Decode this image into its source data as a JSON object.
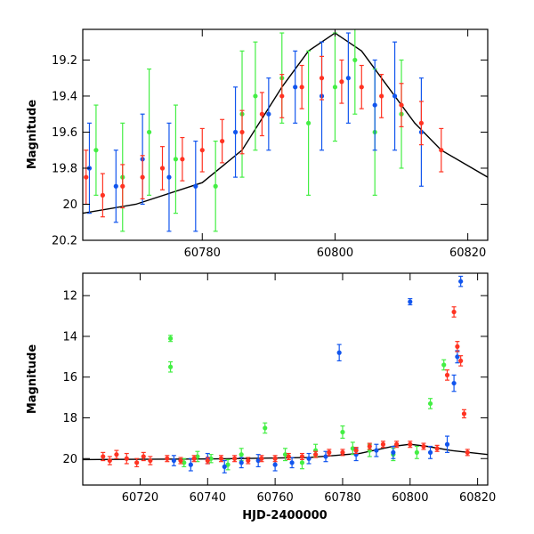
{
  "colors": {
    "green": "#44ee44",
    "blue": "#1155ee",
    "red": "#ff3322",
    "model": "#000000"
  },
  "chart_data": [
    {
      "type": "scatter",
      "panel": "top",
      "xlabel": "",
      "ylabel": "Magnitude",
      "xlim": [
        60762,
        60823
      ],
      "ylim": [
        20.2,
        19.03
      ],
      "y_inverted": true,
      "xticks": [
        60780,
        60800,
        60820
      ],
      "xtick_labels": [
        "60780",
        "60800",
        "60820"
      ],
      "yticks": [
        19.2,
        19.4,
        19.6,
        19.8,
        20,
        20.2
      ],
      "ytick_labels": [
        "19.2",
        "19.4",
        "19.6",
        "19.8",
        "20",
        "20.2"
      ],
      "series": [
        {
          "color": "green",
          "x": [
            60764,
            60768,
            60772,
            60776,
            60782,
            60786,
            60788,
            60792,
            60796,
            60800,
            60803,
            60806,
            60810
          ],
          "y": [
            19.7,
            19.85,
            19.6,
            19.75,
            19.9,
            19.5,
            19.4,
            19.3,
            19.55,
            19.35,
            19.2,
            19.6,
            19.5
          ],
          "err": [
            0.25,
            0.3,
            0.35,
            0.3,
            0.25,
            0.35,
            0.3,
            0.25,
            0.4,
            0.3,
            0.3,
            0.35,
            0.3
          ]
        },
        {
          "color": "blue",
          "x": [
            60763,
            60767,
            60771,
            60775,
            60779,
            60785,
            60790,
            60794,
            60798,
            60802,
            60806,
            60809,
            60813
          ],
          "y": [
            19.8,
            19.9,
            19.75,
            19.85,
            19.9,
            19.6,
            19.5,
            19.35,
            19.4,
            19.3,
            19.45,
            19.4,
            19.6
          ],
          "err": [
            0.25,
            0.2,
            0.25,
            0.3,
            0.25,
            0.25,
            0.2,
            0.2,
            0.3,
            0.25,
            0.25,
            0.3,
            0.3
          ]
        },
        {
          "color": "red",
          "x": [
            60762.5,
            60765,
            60768,
            60771,
            60774,
            60777,
            60780,
            60783,
            60786,
            60789,
            60792,
            60795,
            60798,
            60801,
            60804,
            60807,
            60810,
            60813,
            60816
          ],
          "y": [
            19.85,
            19.95,
            19.9,
            19.85,
            19.8,
            19.75,
            19.7,
            19.65,
            19.6,
            19.5,
            19.4,
            19.35,
            19.3,
            19.32,
            19.35,
            19.4,
            19.45,
            19.55,
            19.7
          ],
          "err": [
            0.15,
            0.12,
            0.12,
            0.12,
            0.12,
            0.12,
            0.12,
            0.12,
            0.12,
            0.12,
            0.12,
            0.12,
            0.12,
            0.12,
            0.12,
            0.12,
            0.12,
            0.12,
            0.12
          ]
        }
      ],
      "model_curve": {
        "x": [
          60762,
          60770,
          60780,
          60786,
          60792,
          60796,
          60800,
          60804,
          60808,
          60812,
          60816,
          60823
        ],
        "y": [
          20.05,
          20.0,
          19.88,
          19.7,
          19.35,
          19.15,
          19.05,
          19.15,
          19.35,
          19.55,
          19.7,
          19.85
        ]
      }
    },
    {
      "type": "scatter",
      "panel": "bottom",
      "xlabel": "HJD-2400000",
      "ylabel": "Magnitude",
      "xlim": [
        60703,
        60823
      ],
      "ylim": [
        21.3,
        10.9
      ],
      "y_inverted": true,
      "xticks": [
        60720,
        60740,
        60760,
        60780,
        60800,
        60820
      ],
      "xtick_labels": [
        "60720",
        "60740",
        "60760",
        "60780",
        "60800",
        "60820"
      ],
      "yticks": [
        12,
        14,
        16,
        18,
        20
      ],
      "ytick_labels": [
        "12",
        "14",
        "16",
        "18",
        "20"
      ],
      "series": [
        {
          "color": "green",
          "x": [
            60729,
            60729,
            60733,
            60737,
            60741,
            60746,
            60750,
            60757,
            60763,
            60768,
            60772,
            60780,
            60783,
            60788,
            60795,
            60802,
            60806,
            60810
          ],
          "y": [
            14.1,
            15.5,
            20.2,
            19.9,
            20.0,
            20.3,
            19.8,
            18.5,
            19.8,
            20.2,
            19.6,
            18.7,
            19.5,
            19.6,
            19.8,
            19.7,
            17.3,
            15.4
          ],
          "err": [
            0.15,
            0.25,
            0.2,
            0.25,
            0.2,
            0.25,
            0.3,
            0.25,
            0.3,
            0.3,
            0.3,
            0.3,
            0.3,
            0.3,
            0.3,
            0.3,
            0.25,
            0.25
          ]
        },
        {
          "color": "blue",
          "x": [
            60730,
            60735,
            60740,
            60745,
            60750,
            60755,
            60760,
            60765,
            60770,
            60775,
            60779,
            60784,
            60790,
            60795,
            60800,
            60806,
            60811,
            60813,
            60814,
            60815
          ],
          "y": [
            20.1,
            20.3,
            20.0,
            20.4,
            20.2,
            20.1,
            20.3,
            20.2,
            20.0,
            19.9,
            14.8,
            19.8,
            19.6,
            19.7,
            12.3,
            19.7,
            19.3,
            16.3,
            15.0,
            11.3
          ],
          "err": [
            0.25,
            0.3,
            0.25,
            0.3,
            0.25,
            0.3,
            0.3,
            0.25,
            0.25,
            0.25,
            0.4,
            0.3,
            0.3,
            0.3,
            0.15,
            0.3,
            0.4,
            0.4,
            0.3,
            0.25
          ]
        },
        {
          "color": "red",
          "x": [
            60709,
            60711,
            60713,
            60716,
            60719,
            60721,
            60723,
            60728,
            60732,
            60736,
            60740,
            60744,
            60748,
            60752,
            60756,
            60760,
            60764,
            60768,
            60772,
            60776,
            60780,
            60784,
            60788,
            60792,
            60796,
            60800,
            60804,
            60808,
            60811,
            60813,
            60814,
            60815,
            60816,
            60817
          ],
          "y": [
            19.9,
            20.1,
            19.8,
            20.0,
            20.2,
            19.9,
            20.1,
            20.0,
            20.1,
            20.0,
            20.1,
            20.0,
            20.0,
            20.1,
            20.0,
            20.0,
            19.9,
            19.9,
            19.8,
            19.7,
            19.7,
            19.6,
            19.4,
            19.3,
            19.3,
            19.3,
            19.4,
            19.5,
            15.9,
            12.8,
            14.5,
            15.2,
            17.8,
            19.7
          ],
          "err": [
            0.2,
            0.2,
            0.2,
            0.25,
            0.2,
            0.2,
            0.2,
            0.15,
            0.15,
            0.15,
            0.15,
            0.15,
            0.15,
            0.15,
            0.15,
            0.15,
            0.15,
            0.15,
            0.15,
            0.15,
            0.15,
            0.15,
            0.15,
            0.15,
            0.15,
            0.15,
            0.15,
            0.15,
            0.25,
            0.25,
            0.25,
            0.25,
            0.2,
            0.15
          ]
        }
      ],
      "model_curve": {
        "x": [
          60703,
          60740,
          60770,
          60785,
          60795,
          60800,
          60805,
          60812,
          60823
        ],
        "y": [
          20.05,
          20.02,
          19.95,
          19.75,
          19.4,
          19.3,
          19.4,
          19.6,
          19.8
        ]
      }
    }
  ]
}
